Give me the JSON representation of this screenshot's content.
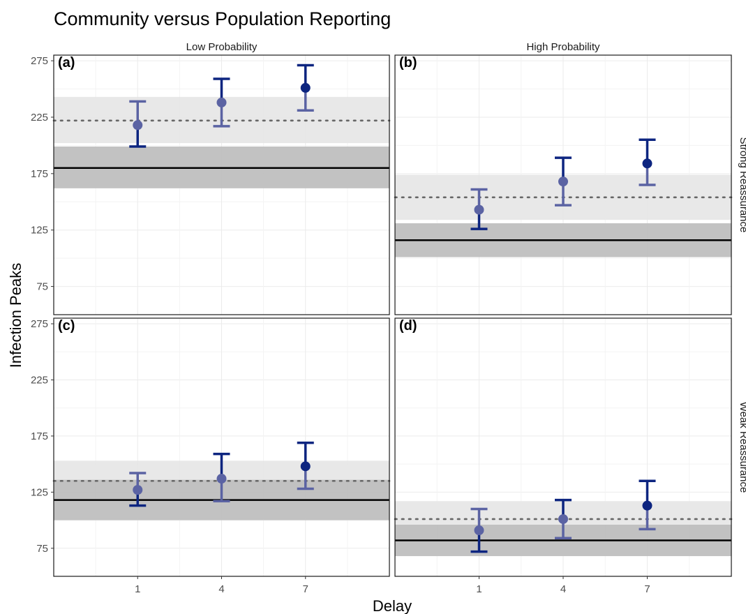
{
  "chart_data": {
    "type": "scatter",
    "title": "Community versus Population Reporting",
    "xlabel": "Delay",
    "ylabel": "Infection Peaks",
    "x_ticks": [
      1,
      4,
      7
    ],
    "xlim": [
      -2,
      10
    ],
    "y_ticks": [
      75,
      125,
      175,
      225,
      275
    ],
    "ylim": [
      50,
      280
    ],
    "column_strips": [
      "Low Probability",
      "High Probability"
    ],
    "row_strips": [
      "Strong Reassurance",
      "Weak Reassurance"
    ],
    "colors": {
      "dark_point": "#0d2580",
      "light_point": "#5b63a3",
      "reference_band": "#bdbdbd",
      "light_band": "#e6e6e6",
      "reference_line": "#000000",
      "dotted_line": "#666666"
    },
    "panels": [
      {
        "label": "(a)",
        "col": 0,
        "row": 0,
        "solid_line": 180,
        "solid_band": [
          162,
          199
        ],
        "dotted_line": 222,
        "dotted_band": [
          202,
          243
        ],
        "points": [
          {
            "x": 1,
            "y": 218,
            "lo": 199,
            "hi": 239
          },
          {
            "x": 4,
            "y": 238,
            "lo": 217,
            "hi": 259
          },
          {
            "x": 7,
            "y": 251,
            "lo": 231,
            "hi": 271
          }
        ]
      },
      {
        "label": "(b)",
        "col": 1,
        "row": 0,
        "solid_line": 116,
        "solid_band": [
          101,
          131
        ],
        "dotted_line": 154,
        "dotted_band": [
          134,
          174
        ],
        "points": [
          {
            "x": 1,
            "y": 143,
            "lo": 126,
            "hi": 161
          },
          {
            "x": 4,
            "y": 168,
            "lo": 147,
            "hi": 189
          },
          {
            "x": 7,
            "y": 184,
            "lo": 165,
            "hi": 205
          }
        ]
      },
      {
        "label": "(c)",
        "col": 0,
        "row": 1,
        "solid_line": 118,
        "solid_band": [
          100,
          136
        ],
        "dotted_line": 135,
        "dotted_band": [
          118,
          153
        ],
        "points": [
          {
            "x": 1,
            "y": 127,
            "lo": 113,
            "hi": 142
          },
          {
            "x": 4,
            "y": 137,
            "lo": 117,
            "hi": 159
          },
          {
            "x": 7,
            "y": 148,
            "lo": 128,
            "hi": 169
          }
        ]
      },
      {
        "label": "(d)",
        "col": 1,
        "row": 1,
        "solid_line": 82,
        "solid_band": [
          68,
          96
        ],
        "dotted_line": 101,
        "dotted_band": [
          84,
          117
        ],
        "points": [
          {
            "x": 1,
            "y": 91,
            "lo": 72,
            "hi": 110
          },
          {
            "x": 4,
            "y": 101,
            "lo": 84,
            "hi": 118
          },
          {
            "x": 7,
            "y": 113,
            "lo": 92,
            "hi": 135
          }
        ]
      }
    ]
  }
}
